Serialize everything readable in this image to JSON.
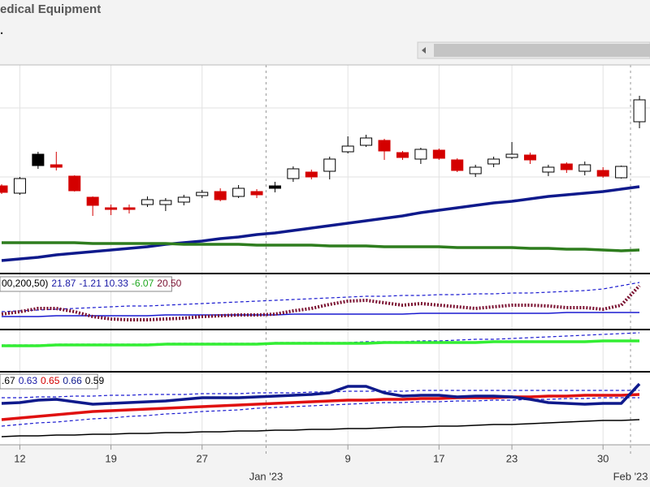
{
  "chart_data": [
    {
      "type": "candlestick",
      "title": "edical Equipment",
      "subtitle": ".",
      "categories": [
        null,
        "12",
        null,
        null,
        null,
        null,
        "19",
        null,
        null,
        null,
        null,
        "27",
        null,
        null,
        null,
        null,
        null,
        null,
        null,
        "9",
        null,
        null,
        null,
        null,
        "17",
        null,
        null,
        null,
        "23",
        null,
        null,
        null,
        null,
        "30",
        null,
        null
      ],
      "months": [
        null,
        null,
        null,
        null,
        null,
        null,
        null,
        null,
        null,
        null,
        null,
        null,
        null,
        null,
        null,
        "Jan '23",
        null,
        null,
        null,
        null,
        null,
        null,
        null,
        null,
        null,
        null,
        null,
        null,
        null,
        null,
        null,
        null,
        null,
        null,
        null,
        "Feb '23"
      ],
      "open": [
        108,
        99,
        147,
        134,
        120,
        94,
        81,
        81,
        85,
        85,
        88,
        96,
        101,
        95,
        101,
        108,
        117,
        125,
        126,
        150,
        158,
        164,
        149,
        141,
        152,
        140,
        123,
        135,
        143,
        146,
        125,
        135,
        126,
        127,
        118,
        187
      ],
      "high": [
        110,
        119,
        150,
        150,
        121,
        95,
        85,
        85,
        95,
        93,
        97,
        103,
        105,
        109,
        104,
        113,
        132,
        128,
        144,
        169,
        171,
        166,
        151,
        155,
        154,
        142,
        134,
        144,
        162,
        149,
        134,
        137,
        138,
        131,
        133,
        219
      ],
      "low": [
        98,
        97,
        129,
        127,
        101,
        71,
        72,
        74,
        82,
        77,
        84,
        93,
        89,
        93,
        93,
        100,
        113,
        116,
        116,
        148,
        156,
        140,
        140,
        135,
        140,
        125,
        119,
        131,
        141,
        135,
        120,
        124,
        121,
        118,
        117,
        179
      ],
      "close": [
        100,
        117,
        133,
        131,
        102,
        84,
        79,
        79,
        91,
        90,
        94,
        100,
        91,
        105,
        97,
        105,
        129,
        119,
        141,
        157,
        167,
        151,
        143,
        153,
        142,
        127,
        131,
        141,
        147,
        140,
        131,
        128,
        134,
        120,
        132,
        214
      ],
      "candle_colors": [
        "#d40000",
        "#000000",
        "#000000",
        "#d40000",
        "#d40000",
        "#d40000",
        "#d40000",
        "#d40000",
        "#000000",
        "#000000",
        "#000000",
        "#000000",
        "#d40000",
        "#000000",
        "#d40000",
        "#000000",
        "#000000",
        "#d40000",
        "#000000",
        "#000000",
        "#000000",
        "#d40000",
        "#d40000",
        "#000000",
        "#d40000",
        "#d40000",
        "#000000",
        "#000000",
        "#000000",
        "#d40000",
        "#000000",
        "#d40000",
        "#000000",
        "#d40000",
        "#000000",
        "#000000"
      ],
      "series": [
        {
          "color": "#0f1a8c",
          "style": "thick",
          "values": [
            16,
            18,
            20,
            23,
            25,
            27,
            29,
            31,
            33,
            36,
            38,
            40,
            43,
            45,
            48,
            50,
            53,
            56,
            59,
            62,
            65,
            68,
            71,
            75,
            78,
            81,
            84,
            87,
            89,
            92,
            95,
            97,
            99,
            101,
            104,
            107
          ]
        },
        {
          "color": "#2e7d1e",
          "style": "thick",
          "values": [
            38,
            38,
            38,
            38,
            38,
            37,
            37,
            37,
            37,
            37,
            36,
            36,
            36,
            36,
            35,
            35,
            35,
            35,
            34,
            34,
            34,
            33,
            33,
            33,
            33,
            32,
            32,
            32,
            32,
            31,
            31,
            30,
            30,
            29,
            28,
            29
          ]
        }
      ],
      "ylim": [
        0,
        257
      ],
      "grid_values": [
        204,
        119
      ],
      "grid": true
    },
    {
      "type": "line",
      "ylim": [
        0,
        68
      ],
      "legend": [
        {
          "text": "00,200,50)",
          "color": "#000000"
        },
        {
          "text": "21.87",
          "color": "#1a1aa6"
        },
        {
          "text": "-1.21",
          "color": "#1a1aa6"
        },
        {
          "text": "10.33",
          "color": "#1a1aa6"
        },
        {
          "text": "-6.07",
          "color": "#1fa81f"
        },
        {
          "text": "20.50",
          "color": "#7a1030"
        }
      ],
      "series": [
        {
          "color": "#1a1ad0",
          "style": "dashed",
          "values": [
            22,
            23,
            24,
            25,
            26,
            27,
            28,
            29,
            29,
            30,
            31,
            32,
            33,
            34,
            35,
            36,
            37,
            38,
            39,
            40,
            41,
            41,
            42,
            42,
            43,
            43,
            44,
            44,
            45,
            45,
            46,
            47,
            48,
            50,
            54,
            58
          ]
        },
        {
          "color": "#1a1ad0",
          "style": "solid",
          "values": [
            16,
            16,
            16,
            17,
            17,
            17,
            17,
            17,
            17,
            18,
            18,
            18,
            18,
            18,
            18,
            18,
            19,
            19,
            19,
            19,
            19,
            19,
            19,
            20,
            20,
            20,
            20,
            20,
            20,
            20,
            20,
            21,
            21,
            21,
            21,
            21
          ]
        },
        {
          "color": "#7a1030",
          "style": "dotted",
          "values": [
            19,
            22,
            26,
            26,
            22,
            16,
            13,
            12,
            12,
            13,
            14,
            16,
            17,
            18,
            18,
            19,
            23,
            26,
            31,
            35,
            36,
            33,
            30,
            32,
            30,
            28,
            26,
            28,
            30,
            30,
            29,
            27,
            27,
            25,
            30,
            54
          ]
        }
      ]
    },
    {
      "type": "line",
      "ylim": [
        0,
        52
      ],
      "series": [
        {
          "color": "#1a1ad0",
          "style": "dashed",
          "values": [
            33,
            33,
            33,
            34,
            34,
            34,
            34,
            34,
            34,
            35,
            35,
            35,
            35,
            35,
            35,
            36,
            36,
            36,
            36,
            36,
            37,
            37,
            37,
            38,
            38,
            39,
            40,
            40,
            41,
            42,
            43,
            44,
            45,
            46,
            47,
            48
          ]
        },
        {
          "color": "#33ee33",
          "style": "thick",
          "values": [
            32,
            32,
            32,
            33,
            33,
            33,
            33,
            33,
            33,
            34,
            34,
            34,
            34,
            34,
            34,
            35,
            35,
            35,
            35,
            35,
            35,
            36,
            36,
            36,
            36,
            36,
            36,
            37,
            37,
            37,
            37,
            37,
            37,
            38,
            38,
            38
          ]
        }
      ]
    },
    {
      "type": "line",
      "ylim": [
        0,
        90
      ],
      "legend": [
        {
          "text": ".67",
          "color": "#000000"
        },
        {
          "text": "0.63",
          "color": "#1a1aa6"
        },
        {
          "text": "0.65",
          "color": "#d40000"
        },
        {
          "text": "0.66",
          "color": "#0f1a8c"
        },
        {
          "text": "0.59",
          "color": "#000000"
        }
      ],
      "series": [
        {
          "color": "#000000",
          "style": "solid",
          "values": [
            10,
            11,
            11,
            12,
            12,
            13,
            13,
            14,
            14,
            15,
            15,
            16,
            16,
            17,
            17,
            18,
            18,
            19,
            19,
            20,
            20,
            21,
            22,
            22,
            23,
            23,
            24,
            25,
            25,
            26,
            27,
            28,
            29,
            30,
            30,
            31
          ]
        },
        {
          "color": "#1a1ad0",
          "style": "dashed",
          "values": [
            23,
            25,
            27,
            28,
            30,
            32,
            33,
            35,
            36,
            38,
            39,
            41,
            42,
            43,
            45,
            46,
            47,
            48,
            49,
            50,
            51,
            52,
            52,
            53,
            53,
            54,
            54,
            55,
            55,
            56,
            56,
            57,
            57,
            58,
            58,
            58
          ]
        },
        {
          "color": "#1a1ad0",
          "style": "dashed",
          "values": [
            58,
            58,
            59,
            59,
            60,
            60,
            61,
            61,
            62,
            62,
            62,
            63,
            63,
            63,
            64,
            64,
            64,
            65,
            65,
            66,
            66,
            66,
            66,
            67,
            67,
            67,
            67,
            67,
            67,
            67,
            67,
            67,
            67,
            67,
            67,
            67
          ]
        },
        {
          "color": "#e01010",
          "style": "thick",
          "values": [
            31,
            33,
            35,
            37,
            39,
            41,
            42,
            43,
            44,
            45,
            46,
            47,
            48,
            49,
            50,
            51,
            52,
            53,
            54,
            55,
            55,
            56,
            56,
            57,
            57,
            58,
            58,
            58,
            59,
            59,
            60,
            60,
            61,
            61,
            61,
            62
          ]
        },
        {
          "color": "#0f1a8c",
          "style": "thick",
          "values": [
            51,
            52,
            55,
            56,
            53,
            50,
            51,
            52,
            53,
            54,
            56,
            58,
            58,
            58,
            59,
            60,
            61,
            62,
            64,
            72,
            72,
            64,
            60,
            61,
            61,
            59,
            60,
            60,
            59,
            56,
            52,
            51,
            50,
            51,
            51,
            75
          ]
        }
      ]
    }
  ]
}
